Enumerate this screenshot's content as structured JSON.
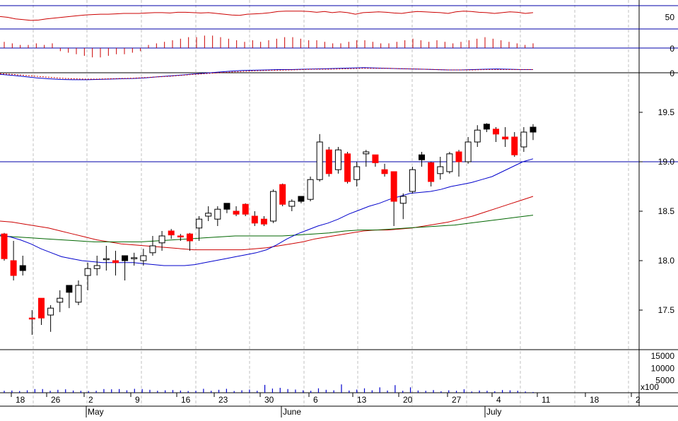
{
  "chart_data": {
    "type": "candlestick",
    "title": "",
    "colors": {
      "up": "#ffffff",
      "down": "#ff0000",
      "black": "#000000",
      "ma_short": "#0000cc",
      "ma_mid": "#cc0000",
      "ma_long": "#006600",
      "volume": "#0000cc",
      "grid": "#c0c0c0",
      "hline": "#0000aa",
      "osc": "#cc0000"
    },
    "price_axis": {
      "ticks": [
        "19.5",
        "19.0",
        "18.5",
        "18.0",
        "17.5"
      ],
      "ylim": [
        17.1,
        19.9
      ],
      "reference_line": 19.0
    },
    "volume_axis": {
      "ticks": [
        "15000",
        "10000",
        "5000"
      ],
      "multiplier": "x100",
      "ylim": [
        0,
        17000
      ]
    },
    "osc_axis": {
      "ticks": [
        "50"
      ],
      "ylim": [
        20,
        80
      ]
    },
    "hist_axis": {
      "ticks": [
        "0"
      ]
    },
    "macd_axis": {
      "ticks": [
        "0"
      ]
    },
    "x_labels": [
      "18",
      "26",
      "2",
      "9",
      "16",
      "23",
      "30",
      "6",
      "13",
      "20",
      "27",
      "4",
      "11",
      "18",
      "2"
    ],
    "month_labels": [
      "May",
      "June",
      "July"
    ],
    "candles": [
      {
        "o": 18.27,
        "h": 18.28,
        "l": 18.0,
        "c": 18.02,
        "color": "down"
      },
      {
        "o": 18.0,
        "h": 18.2,
        "l": 17.8,
        "c": 17.85,
        "color": "down"
      },
      {
        "o": 17.9,
        "h": 18.05,
        "l": 17.85,
        "c": 17.95,
        "color": "black"
      },
      {
        "o": 17.42,
        "h": 17.5,
        "l": 17.25,
        "c": 17.42,
        "color": "down"
      },
      {
        "o": 17.62,
        "h": 17.62,
        "l": 17.35,
        "c": 17.42,
        "color": "down"
      },
      {
        "o": 17.45,
        "h": 17.55,
        "l": 17.28,
        "c": 17.52,
        "color": "up"
      },
      {
        "o": 17.58,
        "h": 17.7,
        "l": 17.48,
        "c": 17.62,
        "color": "up"
      },
      {
        "o": 17.68,
        "h": 17.75,
        "l": 17.52,
        "c": 17.75,
        "color": "black"
      },
      {
        "o": 17.58,
        "h": 17.8,
        "l": 17.55,
        "c": 17.75,
        "color": "up"
      },
      {
        "o": 17.85,
        "h": 17.98,
        "l": 17.7,
        "c": 17.92,
        "color": "up"
      },
      {
        "o": 17.92,
        "h": 18.05,
        "l": 17.85,
        "c": 17.95,
        "color": "up"
      },
      {
        "o": 18.02,
        "h": 18.15,
        "l": 17.9,
        "c": 18.02,
        "color": "up"
      },
      {
        "o": 18.0,
        "h": 18.1,
        "l": 17.85,
        "c": 17.98,
        "color": "down"
      },
      {
        "o": 18.0,
        "h": 18.05,
        "l": 17.8,
        "c": 18.05,
        "color": "black"
      },
      {
        "o": 18.02,
        "h": 18.08,
        "l": 17.95,
        "c": 18.03,
        "color": "up"
      },
      {
        "o": 18.0,
        "h": 18.12,
        "l": 17.95,
        "c": 18.05,
        "color": "up"
      },
      {
        "o": 18.08,
        "h": 18.25,
        "l": 18.05,
        "c": 18.15,
        "color": "up"
      },
      {
        "o": 18.18,
        "h": 18.3,
        "l": 18.1,
        "c": 18.25,
        "color": "up"
      },
      {
        "o": 18.3,
        "h": 18.32,
        "l": 18.22,
        "c": 18.26,
        "color": "down"
      },
      {
        "o": 18.25,
        "h": 18.27,
        "l": 18.2,
        "c": 18.24,
        "color": "down"
      },
      {
        "o": 18.27,
        "h": 18.28,
        "l": 18.1,
        "c": 18.2,
        "color": "down"
      },
      {
        "o": 18.33,
        "h": 18.45,
        "l": 18.2,
        "c": 18.42,
        "color": "up"
      },
      {
        "o": 18.45,
        "h": 18.55,
        "l": 18.4,
        "c": 18.48,
        "color": "up"
      },
      {
        "o": 18.42,
        "h": 18.55,
        "l": 18.35,
        "c": 18.52,
        "color": "up"
      },
      {
        "o": 18.52,
        "h": 18.58,
        "l": 18.48,
        "c": 18.58,
        "color": "black"
      },
      {
        "o": 18.5,
        "h": 18.55,
        "l": 18.45,
        "c": 18.47,
        "color": "down"
      },
      {
        "o": 18.57,
        "h": 18.58,
        "l": 18.45,
        "c": 18.47,
        "color": "down"
      },
      {
        "o": 18.45,
        "h": 18.5,
        "l": 18.35,
        "c": 18.38,
        "color": "down"
      },
      {
        "o": 18.42,
        "h": 18.45,
        "l": 18.35,
        "c": 18.37,
        "color": "down"
      },
      {
        "o": 18.4,
        "h": 18.72,
        "l": 18.38,
        "c": 18.7,
        "color": "up"
      },
      {
        "o": 18.77,
        "h": 18.78,
        "l": 18.55,
        "c": 18.57,
        "color": "down"
      },
      {
        "o": 18.55,
        "h": 18.62,
        "l": 18.5,
        "c": 18.6,
        "color": "up"
      },
      {
        "o": 18.6,
        "h": 18.65,
        "l": 18.58,
        "c": 18.65,
        "color": "black"
      },
      {
        "o": 18.62,
        "h": 18.85,
        "l": 18.6,
        "c": 18.82,
        "color": "up"
      },
      {
        "o": 18.82,
        "h": 19.28,
        "l": 18.8,
        "c": 19.2,
        "color": "up"
      },
      {
        "o": 19.12,
        "h": 19.15,
        "l": 18.85,
        "c": 18.88,
        "color": "down"
      },
      {
        "o": 18.92,
        "h": 19.15,
        "l": 18.88,
        "c": 19.12,
        "color": "up"
      },
      {
        "o": 19.08,
        "h": 19.1,
        "l": 18.78,
        "c": 18.8,
        "color": "down"
      },
      {
        "o": 18.82,
        "h": 19.0,
        "l": 18.75,
        "c": 18.95,
        "color": "up"
      },
      {
        "o": 19.08,
        "h": 19.12,
        "l": 18.95,
        "c": 19.1,
        "color": "up"
      },
      {
        "o": 19.07,
        "h": 19.07,
        "l": 18.95,
        "c": 18.99,
        "color": "down"
      },
      {
        "o": 18.92,
        "h": 18.98,
        "l": 18.85,
        "c": 18.88,
        "color": "down"
      },
      {
        "o": 18.9,
        "h": 18.9,
        "l": 18.35,
        "c": 18.6,
        "color": "down"
      },
      {
        "o": 18.58,
        "h": 18.68,
        "l": 18.42,
        "c": 18.65,
        "color": "up"
      },
      {
        "o": 18.7,
        "h": 18.95,
        "l": 18.68,
        "c": 18.92,
        "color": "up"
      },
      {
        "o": 19.07,
        "h": 19.1,
        "l": 18.95,
        "c": 19.02,
        "color": "black"
      },
      {
        "o": 18.99,
        "h": 19.0,
        "l": 18.75,
        "c": 18.8,
        "color": "down"
      },
      {
        "o": 18.88,
        "h": 19.05,
        "l": 18.82,
        "c": 18.95,
        "color": "up"
      },
      {
        "o": 18.9,
        "h": 19.1,
        "l": 18.88,
        "c": 19.08,
        "color": "up"
      },
      {
        "o": 19.1,
        "h": 19.12,
        "l": 18.85,
        "c": 19.0,
        "color": "down"
      },
      {
        "o": 19.0,
        "h": 19.25,
        "l": 18.98,
        "c": 19.2,
        "color": "up"
      },
      {
        "o": 19.2,
        "h": 19.37,
        "l": 19.15,
        "c": 19.32,
        "color": "up"
      },
      {
        "o": 19.33,
        "h": 19.39,
        "l": 19.3,
        "c": 19.38,
        "color": "black"
      },
      {
        "o": 19.33,
        "h": 19.35,
        "l": 19.2,
        "c": 19.28,
        "color": "down"
      },
      {
        "o": 19.25,
        "h": 19.35,
        "l": 19.15,
        "c": 19.23,
        "color": "down"
      },
      {
        "o": 19.25,
        "h": 19.3,
        "l": 19.05,
        "c": 19.07,
        "color": "down"
      },
      {
        "o": 19.15,
        "h": 19.35,
        "l": 19.1,
        "c": 19.3,
        "color": "up"
      },
      {
        "o": 19.3,
        "h": 19.38,
        "l": 19.22,
        "c": 19.35,
        "color": "black"
      }
    ],
    "volume": [
      800,
      900,
      700,
      1000,
      1500,
      1500,
      800,
      1200,
      1400,
      900,
      800,
      700,
      800,
      1500,
      1400,
      1500,
      1000,
      1600,
      1500,
      1200,
      800,
      1000,
      1100,
      900,
      700,
      800,
      1600,
      800,
      1200,
      1600,
      700,
      1000,
      1300,
      800,
      3200,
      1700,
      2000,
      1500,
      1300,
      1000,
      800,
      1800,
      1200,
      1000,
      3400,
      900,
      1300,
      1800,
      1000,
      2200,
      900,
      3100,
      800,
      2200,
      900,
      800,
      1100,
      600,
      1000,
      800,
      1400,
      500,
      900,
      800,
      600,
      1100,
      1000,
      800,
      500,
      300
    ],
    "ma_short": [
      18.26,
      18.24,
      18.21,
      18.17,
      18.12,
      18.08,
      18.04,
      18.02,
      18.0,
      17.99,
      17.98,
      17.98,
      17.98,
      17.98,
      17.97,
      17.96,
      17.95,
      17.95,
      17.95,
      17.96,
      17.98,
      18.0,
      18.02,
      18.04,
      18.06,
      18.08,
      18.11,
      18.16,
      18.22,
      18.27,
      18.31,
      18.35,
      18.38,
      18.42,
      18.47,
      18.51,
      18.55,
      18.58,
      18.62,
      18.65,
      18.68,
      18.69,
      18.7,
      18.72,
      18.75,
      18.77,
      18.79,
      18.82,
      18.85,
      18.9,
      18.95,
      19.0,
      19.03
    ],
    "ma_mid": [
      18.4,
      18.39,
      18.37,
      18.35,
      18.33,
      18.3,
      18.27,
      18.24,
      18.21,
      18.19,
      18.17,
      18.16,
      18.15,
      18.14,
      18.13,
      18.12,
      18.11,
      18.11,
      18.11,
      18.11,
      18.11,
      18.12,
      18.13,
      18.15,
      18.17,
      18.19,
      18.22,
      18.24,
      18.26,
      18.28,
      18.3,
      18.31,
      18.31,
      18.32,
      18.33,
      18.35,
      18.37,
      18.39,
      18.42,
      18.45,
      18.49,
      18.53,
      18.57,
      18.61,
      18.65
    ],
    "ma_long": [
      18.25,
      18.24,
      18.23,
      18.22,
      18.21,
      18.2,
      18.19,
      18.19,
      18.19,
      18.19,
      18.2,
      18.21,
      18.22,
      18.23,
      18.24,
      18.25,
      18.25,
      18.25,
      18.25,
      18.26,
      18.27,
      18.28,
      18.3,
      18.31,
      18.31,
      18.32,
      18.33,
      18.34,
      18.35,
      18.36,
      18.38,
      18.4,
      18.42,
      18.44,
      18.46
    ],
    "oscillator": [
      52,
      50,
      46,
      44,
      42,
      43,
      46,
      48,
      50,
      52,
      54,
      56,
      57,
      58,
      58,
      59,
      60,
      60,
      60,
      61,
      62,
      62,
      61,
      63,
      63,
      62,
      61,
      62,
      60,
      58,
      56,
      55,
      58,
      59,
      60,
      62,
      65,
      66,
      66,
      66,
      65,
      63,
      65,
      62,
      64,
      62,
      58,
      62,
      63,
      64,
      63,
      61,
      60,
      63,
      65,
      64,
      63,
      62,
      60,
      64,
      66,
      65,
      63,
      62,
      60,
      62,
      64,
      63,
      60,
      62
    ],
    "histogram": [
      0.4,
      0.3,
      0.2,
      0.2,
      0.3,
      0.2,
      0.3,
      -0.2,
      -0.3,
      -0.4,
      -0.5,
      -0.6,
      -0.6,
      -0.5,
      -0.4,
      -0.4,
      -0.3,
      -0.2,
      0.2,
      0.3,
      0.4,
      0.5,
      0.6,
      0.7,
      0.7,
      0.8,
      0.8,
      0.7,
      0.6,
      0.5,
      0.4,
      0.5,
      0.4,
      0.5,
      0.6,
      0.7,
      0.7,
      0.6,
      0.5,
      0.5,
      0.4,
      0.3,
      0.3,
      0.4,
      0.5,
      0.5,
      0.4,
      0.3,
      0.3,
      0.4,
      0.5,
      0.6,
      0.5,
      0.4,
      0.5,
      0.4,
      0.3,
      0.4,
      0.5,
      0.6,
      0.7,
      0.6,
      0.5,
      0.4,
      0.3,
      0.2,
      0.3
    ],
    "macd": [
      -0.5,
      -0.8,
      -1.2,
      -1.6,
      -1.9,
      -2.1,
      -2.2,
      -2.2,
      -2.1,
      -2.0,
      -1.9,
      -1.8,
      -1.6,
      -1.3,
      -1.0,
      -0.7,
      -0.4,
      -0.1,
      0.2,
      0.5,
      0.7,
      0.8,
      0.9,
      1.0,
      1.0,
      1.1,
      1.2,
      1.3,
      1.4,
      1.5,
      1.6,
      1.5,
      1.4,
      1.3,
      1.2,
      1.1,
      1.0,
      0.9,
      0.9,
      1.0,
      1.1,
      1.2,
      1.1,
      1.0,
      1.0
    ],
    "macd_signal": [
      -0.3,
      -0.5,
      -0.8,
      -1.1,
      -1.4,
      -1.7,
      -1.9,
      -2.0,
      -2.0,
      -1.9,
      -1.8,
      -1.7,
      -1.5,
      -1.3,
      -1.1,
      -0.8,
      -0.5,
      -0.3,
      0.0,
      0.2,
      0.4,
      0.6,
      0.7,
      0.8,
      0.9,
      1.0,
      1.1,
      1.1,
      1.2,
      1.3,
      1.4,
      1.4,
      1.4,
      1.3,
      1.2,
      1.1,
      1.0,
      0.9,
      0.9,
      0.9,
      1.0,
      1.0,
      1.0,
      1.0,
      1.0
    ]
  }
}
